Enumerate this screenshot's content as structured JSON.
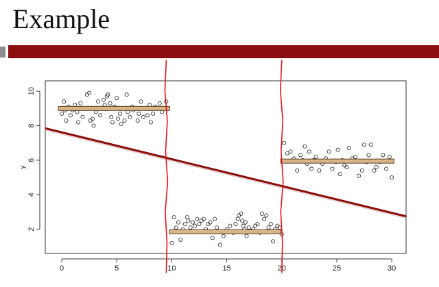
{
  "slide": {
    "title": "Example"
  },
  "colors": {
    "title_bar": "#8b0d0d",
    "title_bar_left": "#8c8c8c",
    "regression_line": "#8b0d0d",
    "segment_fill": "#d9b58a",
    "segment_edge": "#5a3d1c",
    "annotation": "#e8141c",
    "points": "#222222"
  },
  "chart_data": {
    "type": "scatter",
    "title": "",
    "xlabel": "",
    "ylabel": "y",
    "xlim": [
      -1.5,
      31.3
    ],
    "ylim": [
      0.6,
      10.6
    ],
    "xticks": [
      0,
      5,
      10,
      15,
      20,
      25,
      30
    ],
    "yticks": [
      2,
      4,
      6,
      8,
      10
    ],
    "grid": false,
    "points": [
      [
        0.0,
        8.7
      ],
      [
        0.2,
        9.4
      ],
      [
        0.3,
        8.9
      ],
      [
        0.4,
        8.3
      ],
      [
        0.6,
        9.1
      ],
      [
        0.8,
        8.6
      ],
      [
        1.0,
        8.9
      ],
      [
        1.2,
        9.2
      ],
      [
        1.4,
        8.8
      ],
      [
        1.5,
        8.2
      ],
      [
        1.7,
        9.3
      ],
      [
        1.9,
        8.5
      ],
      [
        2.1,
        9.0
      ],
      [
        2.3,
        9.8
      ],
      [
        2.5,
        9.9
      ],
      [
        2.6,
        8.3
      ],
      [
        2.8,
        8.4
      ],
      [
        2.9,
        8.0
      ],
      [
        3.1,
        8.8
      ],
      [
        3.3,
        9.4
      ],
      [
        3.5,
        8.6
      ],
      [
        3.6,
        9.0
      ],
      [
        3.8,
        9.5
      ],
      [
        3.9,
        9.2
      ],
      [
        4.1,
        9.7
      ],
      [
        4.2,
        9.8
      ],
      [
        4.4,
        9.3
      ],
      [
        4.5,
        8.5
      ],
      [
        4.6,
        8.2
      ],
      [
        4.8,
        9.1
      ],
      [
        5.0,
        9.6
      ],
      [
        5.1,
        8.4
      ],
      [
        5.3,
        8.7
      ],
      [
        5.4,
        8.1
      ],
      [
        5.6,
        9.0
      ],
      [
        5.7,
        8.3
      ],
      [
        5.9,
        9.8
      ],
      [
        6.0,
        8.8
      ],
      [
        6.2,
        8.5
      ],
      [
        6.4,
        9.1
      ],
      [
        6.5,
        8.9
      ],
      [
        6.7,
        9.0
      ],
      [
        6.9,
        8.3
      ],
      [
        7.0,
        8.7
      ],
      [
        7.2,
        9.4
      ],
      [
        7.4,
        8.5
      ],
      [
        7.6,
        9.0
      ],
      [
        7.8,
        8.6
      ],
      [
        8.0,
        9.2
      ],
      [
        8.1,
        8.2
      ],
      [
        8.3,
        8.7
      ],
      [
        8.5,
        9.1
      ],
      [
        8.7,
        9.0
      ],
      [
        8.9,
        9.3
      ],
      [
        9.1,
        8.8
      ],
      [
        9.3,
        9.0
      ],
      [
        9.5,
        9.4
      ],
      [
        10.0,
        1.2
      ],
      [
        10.2,
        2.7
      ],
      [
        10.4,
        2.1
      ],
      [
        10.6,
        2.4
      ],
      [
        10.8,
        1.4
      ],
      [
        11.0,
        2.0
      ],
      [
        11.2,
        2.3
      ],
      [
        11.4,
        2.7
      ],
      [
        11.5,
        2.5
      ],
      [
        11.7,
        2.1
      ],
      [
        11.9,
        2.4
      ],
      [
        12.1,
        2.2
      ],
      [
        12.3,
        2.6
      ],
      [
        12.5,
        2.3
      ],
      [
        12.7,
        2.5
      ],
      [
        12.9,
        2.6
      ],
      [
        13.1,
        2.0
      ],
      [
        13.3,
        2.3
      ],
      [
        13.5,
        2.4
      ],
      [
        13.7,
        1.5
      ],
      [
        13.9,
        2.6
      ],
      [
        14.1,
        2.1
      ],
      [
        14.4,
        1.1
      ],
      [
        14.7,
        1.6
      ],
      [
        15.0,
        2.0
      ],
      [
        15.3,
        2.2
      ],
      [
        15.6,
        1.8
      ],
      [
        15.8,
        2.3
      ],
      [
        16.0,
        2.6
      ],
      [
        16.1,
        2.8
      ],
      [
        16.3,
        2.9
      ],
      [
        16.4,
        2.5
      ],
      [
        16.5,
        2.2
      ],
      [
        16.6,
        2.0
      ],
      [
        16.7,
        2.4
      ],
      [
        16.8,
        1.6
      ],
      [
        17.0,
        2.1
      ],
      [
        17.2,
        1.9
      ],
      [
        17.4,
        2.0
      ],
      [
        17.6,
        2.2
      ],
      [
        17.8,
        2.3
      ],
      [
        18.0,
        1.8
      ],
      [
        18.2,
        2.9
      ],
      [
        18.4,
        2.6
      ],
      [
        18.6,
        2.8
      ],
      [
        18.8,
        2.1
      ],
      [
        19.0,
        2.3
      ],
      [
        19.2,
        1.3
      ],
      [
        19.4,
        2.0
      ],
      [
        19.6,
        2.2
      ],
      [
        19.8,
        2.1
      ],
      [
        20.0,
        1.7
      ],
      [
        20.2,
        7.0
      ],
      [
        20.5,
        6.4
      ],
      [
        20.8,
        6.5
      ],
      [
        21.1,
        6.1
      ],
      [
        21.4,
        5.4
      ],
      [
        21.7,
        6.3
      ],
      [
        21.9,
        6.0
      ],
      [
        22.1,
        6.8
      ],
      [
        22.3,
        5.8
      ],
      [
        22.5,
        6.5
      ],
      [
        22.7,
        5.5
      ],
      [
        22.9,
        6.0
      ],
      [
        23.1,
        6.2
      ],
      [
        23.4,
        5.4
      ],
      [
        23.7,
        5.8
      ],
      [
        24.0,
        6.1
      ],
      [
        24.3,
        6.5
      ],
      [
        24.6,
        5.5
      ],
      [
        24.9,
        5.9
      ],
      [
        25.1,
        6.6
      ],
      [
        25.3,
        5.2
      ],
      [
        25.5,
        6.0
      ],
      [
        25.7,
        5.7
      ],
      [
        25.9,
        5.6
      ],
      [
        26.1,
        6.7
      ],
      [
        26.4,
        6.1
      ],
      [
        26.7,
        6.2
      ],
      [
        27.0,
        5.1
      ],
      [
        27.3,
        5.4
      ],
      [
        27.5,
        6.9
      ],
      [
        27.7,
        5.9
      ],
      [
        27.9,
        6.3
      ],
      [
        28.1,
        6.9
      ],
      [
        28.4,
        5.4
      ],
      [
        28.6,
        5.6
      ],
      [
        28.9,
        5.9
      ],
      [
        29.2,
        6.3
      ],
      [
        29.5,
        5.5
      ],
      [
        29.8,
        6.2
      ],
      [
        30.0,
        5.0
      ]
    ],
    "regression_line": {
      "x": [
        -1.5,
        31.3
      ],
      "y": [
        7.85,
        2.75
      ]
    },
    "segment_means": [
      {
        "x": [
          -0.3,
          9.8
        ],
        "y": 9.0
      },
      {
        "x": [
          9.8,
          19.9
        ],
        "y": 1.85
      },
      {
        "x": [
          19.9,
          30.2
        ],
        "y": 5.95
      }
    ],
    "annotations": {
      "vertical_marks_x": [
        9.5,
        20.0
      ]
    }
  }
}
